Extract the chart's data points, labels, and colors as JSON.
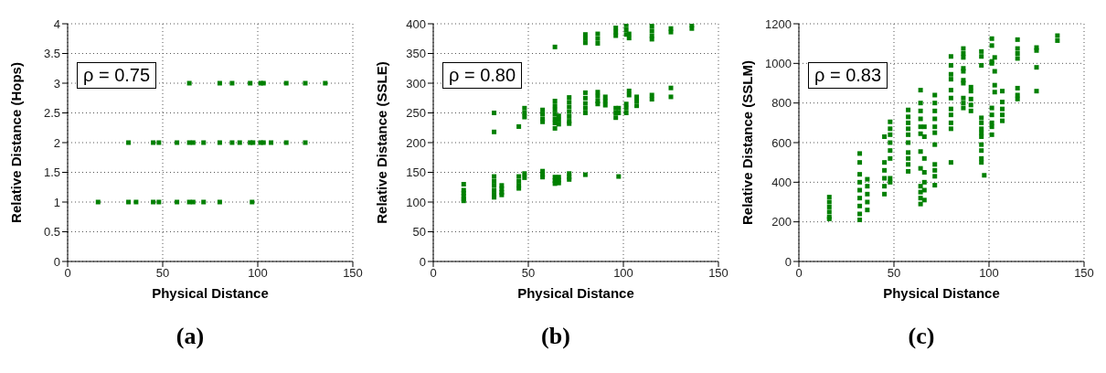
{
  "chart_data": [
    {
      "type": "scatter",
      "xlabel": "Physical Distance",
      "ylabel": "Relative Distance (Hops)",
      "annotations": [
        "ρ = 0.75",
        "(a)"
      ],
      "xlim": [
        0,
        150
      ],
      "xticks": [
        0,
        50,
        100,
        150
      ],
      "ylim": [
        0,
        4
      ],
      "yticks": [
        0,
        0.5,
        1,
        1.5,
        2,
        2.5,
        3,
        3.5,
        4
      ],
      "grid": true,
      "marker": "square",
      "series": [
        {
          "color": "#008000",
          "x": [
            64,
            80,
            86.5,
            96,
            101.5,
            103,
            115,
            125,
            135.5,
            32,
            45,
            48,
            57.5,
            64,
            66,
            71.5,
            80,
            86.5,
            90.5,
            96,
            97.5,
            101.5,
            103,
            107,
            115,
            125,
            16,
            32,
            36,
            45,
            48,
            57.5,
            64,
            66,
            71.5,
            80,
            97
          ],
          "values": [
            3,
            3,
            3,
            3,
            3,
            3,
            3,
            3,
            3,
            2,
            2,
            2,
            2,
            2,
            2,
            2,
            2,
            2,
            2,
            2,
            2,
            2,
            2,
            2,
            2,
            2,
            1,
            1,
            1,
            1,
            1,
            1,
            1,
            1,
            1,
            1,
            1
          ]
        }
      ]
    },
    {
      "type": "scatter",
      "xlabel": "Physical Distance",
      "ylabel": "Relative Distance (SSLE)",
      "annotations": [
        "ρ = 0.80",
        "(b)"
      ],
      "xlim": [
        0,
        150
      ],
      "xticks": [
        0,
        50,
        100,
        150
      ],
      "ylim": [
        0,
        400
      ],
      "yticks": [
        0,
        50,
        100,
        150,
        200,
        250,
        300,
        350,
        400
      ],
      "grid": true,
      "marker": "square",
      "series": [
        {
          "color": "#008000",
          "x": [
            16,
            16,
            16,
            16,
            16,
            16,
            32,
            32,
            32,
            32,
            32,
            32,
            32,
            32,
            36,
            36,
            36,
            36,
            45,
            45,
            45,
            45,
            45,
            48,
            48,
            48,
            48,
            48,
            57.5,
            57.5,
            57.5,
            57.5,
            57.5,
            57.5,
            57.5,
            64,
            64,
            64,
            64,
            64,
            64,
            64,
            64,
            64,
            64,
            64,
            66,
            66,
            66,
            66,
            66,
            66,
            71.5,
            71.5,
            71.5,
            71.5,
            71.5,
            71.5,
            71.5,
            71.5,
            71.5,
            71.5,
            80,
            80,
            80,
            80,
            80,
            80,
            80,
            80,
            80,
            86.5,
            86.5,
            86.5,
            86.5,
            86.5,
            86.5,
            86.5,
            90.5,
            90.5,
            90.5,
            96,
            96,
            96,
            96,
            96,
            96,
            97.5,
            97.5,
            97.5,
            101.5,
            101.5,
            101.5,
            101.5,
            101.5,
            101.5,
            103,
            103,
            103,
            103,
            107,
            107,
            107,
            115,
            115,
            115,
            115,
            115,
            115,
            125,
            125,
            125,
            125,
            136,
            136
          ],
          "values": [
            130,
            120,
            115,
            110,
            105,
            102,
            250,
            218,
            143,
            135,
            128,
            120,
            113,
            108,
            128,
            122,
            116,
            112,
            227,
            143,
            135,
            128,
            123,
            258,
            250,
            243,
            148,
            141,
            255,
            248,
            240,
            235,
            152,
            146,
            142,
            361,
            270,
            262,
            255,
            248,
            240,
            233,
            224,
            142,
            136,
            131,
            245,
            238,
            231,
            142,
            137,
            132,
            276,
            268,
            260,
            252,
            244,
            236,
            232,
            148,
            142,
            138,
            382,
            375,
            368,
            284,
            275,
            266,
            258,
            250,
            146,
            383,
            375,
            367,
            285,
            278,
            270,
            265,
            277,
            270,
            263,
            393,
            386,
            380,
            258,
            250,
            242,
            258,
            250,
            143,
            398,
            390,
            382,
            265,
            258,
            250,
            383,
            376,
            287,
            280,
            277,
            270,
            262,
            396,
            388,
            380,
            374,
            280,
            273,
            392,
            386,
            292,
            277,
            398,
            392
          ]
        }
      ]
    },
    {
      "type": "scatter",
      "xlabel": "Physical Distance",
      "ylabel": "Relative Distance (SSLM)",
      "annotations": [
        "ρ = 0.83",
        "(c)"
      ],
      "xlim": [
        0,
        150
      ],
      "xticks": [
        0,
        50,
        100,
        150
      ],
      "ylim": [
        0,
        1200
      ],
      "yticks": [
        0,
        200,
        400,
        600,
        800,
        1000,
        1200
      ],
      "grid": true,
      "marker": "square",
      "series": [
        {
          "color": "#008000",
          "x": [
            16,
            16,
            16,
            16,
            16,
            16,
            32,
            32,
            32,
            32,
            32,
            32,
            32,
            32,
            32,
            36,
            36,
            36,
            36,
            36,
            45,
            45,
            45,
            45,
            45,
            45,
            48,
            48,
            48,
            48,
            48,
            48,
            48,
            48,
            57.5,
            57.5,
            57.5,
            57.5,
            57.5,
            57.5,
            57.5,
            57.5,
            57.5,
            57.5,
            64,
            64,
            64,
            64,
            64,
            64,
            64,
            64,
            64,
            64,
            64,
            64,
            66,
            66,
            66,
            66,
            66,
            66,
            66,
            71.5,
            71.5,
            71.5,
            71.5,
            71.5,
            71.5,
            71.5,
            71.5,
            71.5,
            71.5,
            71.5,
            80,
            80,
            80,
            80,
            80,
            80,
            80,
            80,
            80,
            80,
            80,
            86.5,
            86.5,
            86.5,
            86.5,
            86.5,
            86.5,
            86.5,
            86.5,
            86.5,
            86.5,
            90.5,
            90.5,
            90.5,
            90.5,
            90.5,
            96,
            96,
            96,
            96,
            96,
            96,
            96,
            96,
            96,
            96,
            96,
            96,
            97.5,
            101.5,
            101.5,
            101.5,
            101.5,
            101.5,
            101.5,
            101.5,
            101.5,
            101.5,
            103,
            103,
            103,
            103,
            107,
            107,
            107,
            107,
            107,
            115,
            115,
            115,
            115,
            115,
            115,
            115,
            125,
            125,
            125,
            125,
            136,
            136
          ],
          "values": [
            325,
            300,
            275,
            250,
            225,
            215,
            545,
            500,
            440,
            400,
            360,
            320,
            280,
            240,
            210,
            415,
            380,
            340,
            300,
            260,
            630,
            500,
            460,
            420,
            380,
            340,
            705,
            670,
            640,
            600,
            560,
            520,
            420,
            400,
            765,
            730,
            700,
            670,
            640,
            600,
            550,
            520,
            490,
            455,
            865,
            800,
            760,
            720,
            680,
            645,
            555,
            470,
            380,
            350,
            320,
            290,
            680,
            630,
            520,
            450,
            400,
            360,
            310,
            840,
            800,
            760,
            720,
            680,
            650,
            590,
            490,
            460,
            430,
            385,
            1035,
            990,
            945,
            920,
            865,
            825,
            770,
            740,
            700,
            670,
            500,
            1075,
            1050,
            1030,
            975,
            960,
            915,
            900,
            825,
            800,
            775,
            880,
            860,
            820,
            790,
            760,
            1060,
            1035,
            990,
            725,
            700,
            670,
            650,
            630,
            590,
            560,
            520,
            500,
            435,
            1125,
            1090,
            1010,
            1000,
            775,
            740,
            700,
            680,
            640,
            1030,
            960,
            890,
            855,
            860,
            805,
            770,
            740,
            710,
            1120,
            1075,
            1050,
            1025,
            875,
            840,
            820,
            1080,
            1065,
            980,
            860,
            1140,
            1115
          ]
        }
      ]
    }
  ]
}
